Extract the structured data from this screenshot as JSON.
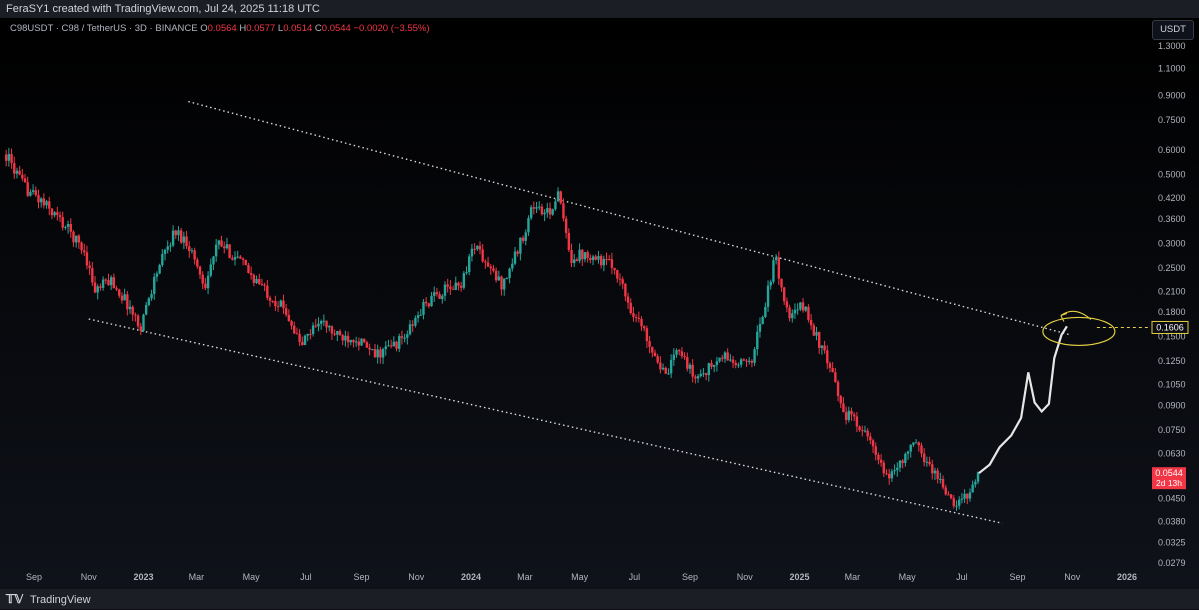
{
  "header": {
    "attribution": "FeraSY1 created with TradingView.com, Jul 24, 2025 11:18 UTC"
  },
  "symbol": {
    "description": "C98USDT · C98 / TetherUS · 3D · BINANCE",
    "open_label": "O",
    "open": "0.0564",
    "high_label": "H",
    "high": "0.0577",
    "low_label": "L",
    "low": "0.0514",
    "close_label": "C",
    "close": "0.0544",
    "change": "−0.0020 (−3.55%)"
  },
  "currency": "USDT",
  "footer": {
    "brand": "TradingView"
  },
  "colors": {
    "up": "#26a69a",
    "down": "#f23645",
    "projection": "#e6e6e6",
    "target": "#e5d042",
    "trendline": "#ffffff",
    "axis_text": "#b2b5be"
  },
  "icons": {
    "brand": "tradingview-logo-icon"
  },
  "chart_data": {
    "type": "candlestick",
    "scale": "log",
    "ylim": [
      0.0265,
      1.6
    ],
    "x_ticks": [
      {
        "label": "Sep",
        "date": "2022-09-01"
      },
      {
        "label": "Nov",
        "date": "2022-11-01"
      },
      {
        "label": "2023",
        "date": "2023-01-01"
      },
      {
        "label": "Mar",
        "date": "2023-03-01"
      },
      {
        "label": "May",
        "date": "2023-05-01"
      },
      {
        "label": "Jul",
        "date": "2023-07-01"
      },
      {
        "label": "Sep",
        "date": "2023-09-01"
      },
      {
        "label": "Nov",
        "date": "2023-11-01"
      },
      {
        "label": "2024",
        "date": "2024-01-01"
      },
      {
        "label": "Mar",
        "date": "2024-03-01"
      },
      {
        "label": "May",
        "date": "2024-05-01"
      },
      {
        "label": "Jul",
        "date": "2024-07-01"
      },
      {
        "label": "Sep",
        "date": "2024-09-01"
      },
      {
        "label": "Nov",
        "date": "2024-11-01"
      },
      {
        "label": "2025",
        "date": "2025-01-01"
      },
      {
        "label": "Mar",
        "date": "2025-03-01"
      },
      {
        "label": "May",
        "date": "2025-05-01"
      },
      {
        "label": "Jul",
        "date": "2025-07-01"
      },
      {
        "label": "Sep",
        "date": "2025-09-01"
      },
      {
        "label": "Nov",
        "date": "2025-11-01"
      },
      {
        "label": "2026",
        "date": "2026-01-01"
      }
    ],
    "y_ticks": [
      "1.3000",
      "1.1000",
      "0.9000",
      "0.7500",
      "0.6000",
      "0.5000",
      "0.4200",
      "0.3600",
      "0.3000",
      "0.2500",
      "0.2100",
      "0.1800",
      "0.1500",
      "0.1250",
      "0.1050",
      "0.0900",
      "0.0750",
      "0.0630",
      "0.0450",
      "0.0380",
      "0.0325",
      "0.0279"
    ],
    "price_path": [
      [
        "2022-08-01",
        0.58
      ],
      [
        "2022-08-20",
        0.46
      ],
      [
        "2022-09-05",
        0.42
      ],
      [
        "2022-09-25",
        0.37
      ],
      [
        "2022-10-10",
        0.33
      ],
      [
        "2022-10-28",
        0.28
      ],
      [
        "2022-11-08",
        0.21
      ],
      [
        "2022-11-25",
        0.23
      ],
      [
        "2022-12-15",
        0.19
      ],
      [
        "2022-12-28",
        0.16
      ],
      [
        "2023-01-15",
        0.24
      ],
      [
        "2023-02-05",
        0.33
      ],
      [
        "2023-02-20",
        0.3
      ],
      [
        "2023-03-10",
        0.22
      ],
      [
        "2023-03-25",
        0.3
      ],
      [
        "2023-04-15",
        0.27
      ],
      [
        "2023-05-05",
        0.23
      ],
      [
        "2023-05-25",
        0.2
      ],
      [
        "2023-06-10",
        0.18
      ],
      [
        "2023-06-25",
        0.14
      ],
      [
        "2023-07-15",
        0.17
      ],
      [
        "2023-08-05",
        0.15
      ],
      [
        "2023-08-25",
        0.15
      ],
      [
        "2023-09-15",
        0.13
      ],
      [
        "2023-10-05",
        0.14
      ],
      [
        "2023-10-20",
        0.15
      ],
      [
        "2023-11-10",
        0.19
      ],
      [
        "2023-11-30",
        0.21
      ],
      [
        "2023-12-20",
        0.22
      ],
      [
        "2024-01-05",
        0.3
      ],
      [
        "2024-01-20",
        0.25
      ],
      [
        "2024-02-05",
        0.22
      ],
      [
        "2024-02-25",
        0.3
      ],
      [
        "2024-03-10",
        0.4
      ],
      [
        "2024-03-25",
        0.37
      ],
      [
        "2024-04-08",
        0.43
      ],
      [
        "2024-04-20",
        0.27
      ],
      [
        "2024-05-10",
        0.28
      ],
      [
        "2024-05-30",
        0.26
      ],
      [
        "2024-06-10",
        0.25
      ],
      [
        "2024-06-25",
        0.19
      ],
      [
        "2024-07-10",
        0.16
      ],
      [
        "2024-07-25",
        0.13
      ],
      [
        "2024-08-05",
        0.11
      ],
      [
        "2024-08-20",
        0.14
      ],
      [
        "2024-09-05",
        0.11
      ],
      [
        "2024-09-25",
        0.12
      ],
      [
        "2024-10-10",
        0.13
      ],
      [
        "2024-10-25",
        0.12
      ],
      [
        "2024-11-10",
        0.13
      ],
      [
        "2024-11-25",
        0.2
      ],
      [
        "2024-12-05",
        0.27
      ],
      [
        "2024-12-20",
        0.17
      ],
      [
        "2025-01-05",
        0.19
      ],
      [
        "2025-01-20",
        0.15
      ],
      [
        "2025-02-03",
        0.12
      ],
      [
        "2025-02-20",
        0.085
      ],
      [
        "2025-03-10",
        0.078
      ],
      [
        "2025-03-25",
        0.064
      ],
      [
        "2025-04-08",
        0.052
      ],
      [
        "2025-04-25",
        0.06
      ],
      [
        "2025-05-10",
        0.068
      ],
      [
        "2025-05-25",
        0.058
      ],
      [
        "2025-06-10",
        0.05
      ],
      [
        "2025-06-22",
        0.042
      ],
      [
        "2025-07-05",
        0.046
      ],
      [
        "2025-07-20",
        0.0544
      ]
    ],
    "projection_path": [
      [
        "2025-07-20",
        0.0544
      ],
      [
        "2025-08-01",
        0.058
      ],
      [
        "2025-08-12",
        0.066
      ],
      [
        "2025-08-25",
        0.072
      ],
      [
        "2025-09-05",
        0.082
      ],
      [
        "2025-09-13",
        0.115
      ],
      [
        "2025-09-20",
        0.092
      ],
      [
        "2025-09-28",
        0.086
      ],
      [
        "2025-10-06",
        0.091
      ],
      [
        "2025-10-12",
        0.128
      ],
      [
        "2025-10-20",
        0.152
      ],
      [
        "2025-10-26",
        0.162
      ]
    ],
    "trendlines": {
      "upper": [
        [
          "2023-02-20",
          0.86
        ],
        [
          "2025-10-30",
          0.152
        ]
      ],
      "lower": [
        [
          "2022-11-01",
          0.171
        ],
        [
          "2025-08-15",
          0.0375
        ]
      ]
    },
    "target_price": "0.1606",
    "last_price": "0.0544",
    "countdown": "2d 13h"
  }
}
